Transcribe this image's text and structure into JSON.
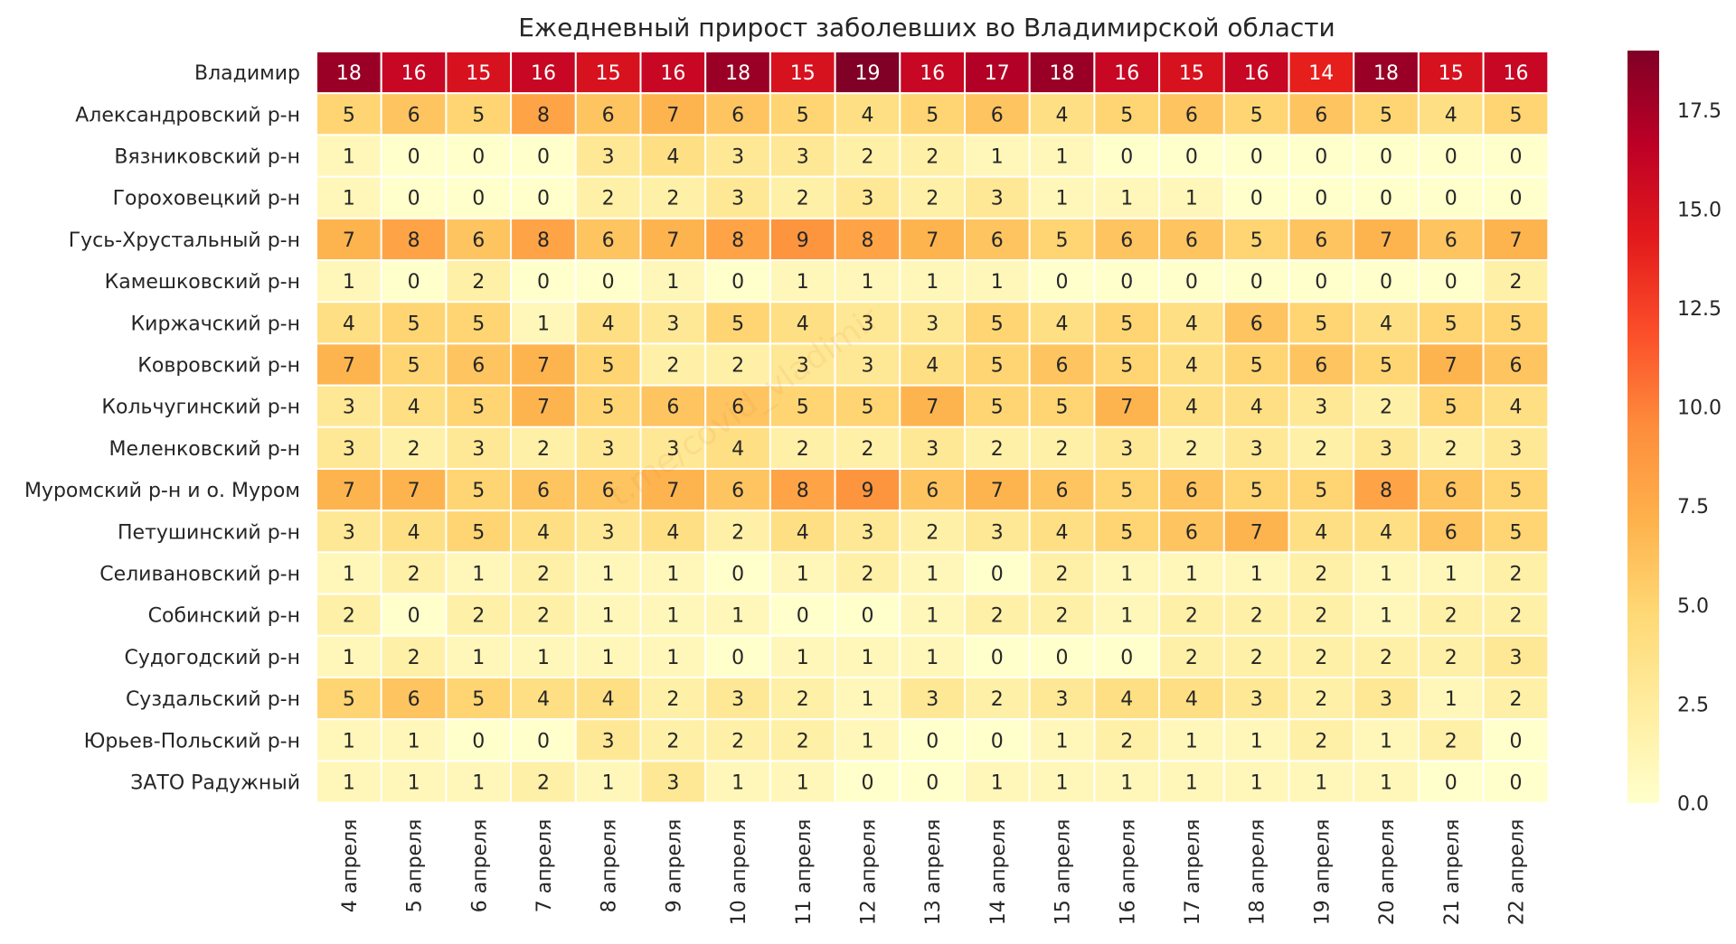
{
  "chart_data": {
    "type": "heatmap",
    "title": "Ежедневный прирост заболевших во Владимирской области",
    "x_categories": [
      "4 апреля",
      "5 апреля",
      "6 апреля",
      "7 апреля",
      "8 апреля",
      "9 апреля",
      "10 апреля",
      "11 апреля",
      "12 апреля",
      "13 апреля",
      "14 апреля",
      "15 апреля",
      "16 апреля",
      "17 апреля",
      "18 апреля",
      "19 апреля",
      "20 апреля",
      "21 апреля",
      "22 апреля"
    ],
    "y_categories": [
      "Владимир",
      "Александровский р-н",
      "Вязниковский р-н",
      "Гороховецкий р-н",
      "Гусь-Хрустальный р-н",
      "Камешковский р-н",
      "Киржачский р-н",
      "Ковровский р-н",
      "Кольчугинский р-н",
      "Меленковский р-н",
      "Муромский р-н и о. Муром",
      "Петушинский р-н",
      "Селивановский р-н",
      "Собинский р-н",
      "Судогодский р-н",
      "Суздальский р-н",
      "Юрьев-Польский р-н",
      "ЗАТО Радужный"
    ],
    "values": [
      [
        18,
        16,
        15,
        16,
        15,
        16,
        18,
        15,
        19,
        16,
        17,
        18,
        16,
        15,
        16,
        14,
        18,
        15,
        16
      ],
      [
        5,
        6,
        5,
        8,
        6,
        7,
        6,
        5,
        4,
        5,
        6,
        4,
        5,
        6,
        5,
        6,
        5,
        4,
        5
      ],
      [
        1,
        0,
        0,
        0,
        3,
        4,
        3,
        3,
        2,
        2,
        1,
        1,
        0,
        0,
        0,
        0,
        0,
        0,
        0
      ],
      [
        1,
        0,
        0,
        0,
        2,
        2,
        3,
        2,
        3,
        2,
        3,
        1,
        1,
        1,
        0,
        0,
        0,
        0,
        0
      ],
      [
        7,
        8,
        6,
        8,
        6,
        7,
        8,
        9,
        8,
        7,
        6,
        5,
        6,
        6,
        5,
        6,
        7,
        6,
        7
      ],
      [
        1,
        0,
        2,
        0,
        0,
        1,
        0,
        1,
        1,
        1,
        1,
        0,
        0,
        0,
        0,
        0,
        0,
        0,
        2
      ],
      [
        4,
        5,
        5,
        1,
        4,
        3,
        5,
        4,
        3,
        3,
        5,
        4,
        5,
        4,
        6,
        5,
        4,
        5,
        5
      ],
      [
        7,
        5,
        6,
        7,
        5,
        2,
        2,
        3,
        3,
        4,
        5,
        6,
        5,
        4,
        5,
        6,
        5,
        7,
        6
      ],
      [
        3,
        4,
        5,
        7,
        5,
        6,
        6,
        5,
        5,
        7,
        5,
        5,
        7,
        4,
        4,
        3,
        2,
        5,
        4
      ],
      [
        3,
        2,
        3,
        2,
        3,
        3,
        4,
        2,
        2,
        3,
        2,
        2,
        3,
        2,
        3,
        2,
        3,
        2,
        3
      ],
      [
        7,
        7,
        5,
        6,
        6,
        7,
        6,
        8,
        9,
        6,
        7,
        6,
        5,
        6,
        5,
        5,
        8,
        6,
        5
      ],
      [
        3,
        4,
        5,
        4,
        3,
        4,
        2,
        4,
        3,
        2,
        3,
        4,
        5,
        6,
        7,
        4,
        4,
        6,
        5
      ],
      [
        1,
        2,
        1,
        2,
        1,
        1,
        0,
        1,
        2,
        1,
        0,
        2,
        1,
        1,
        1,
        2,
        1,
        1,
        2
      ],
      [
        2,
        0,
        2,
        2,
        1,
        1,
        1,
        0,
        0,
        1,
        2,
        2,
        1,
        2,
        2,
        2,
        1,
        2,
        2
      ],
      [
        1,
        2,
        1,
        1,
        1,
        1,
        0,
        1,
        1,
        1,
        0,
        0,
        0,
        2,
        2,
        2,
        2,
        2,
        3
      ],
      [
        5,
        6,
        5,
        4,
        4,
        2,
        3,
        2,
        1,
        3,
        2,
        3,
        4,
        4,
        3,
        2,
        3,
        1,
        2
      ],
      [
        1,
        1,
        0,
        0,
        3,
        2,
        2,
        2,
        1,
        0,
        0,
        1,
        2,
        1,
        1,
        2,
        1,
        2,
        0
      ],
      [
        1,
        1,
        1,
        2,
        1,
        3,
        1,
        1,
        0,
        0,
        1,
        1,
        1,
        1,
        1,
        1,
        1,
        0,
        0
      ]
    ],
    "colormap": "YlOrRd",
    "vmin": 0,
    "vmax": 19,
    "colorbar_ticks": [
      "0.0",
      "2.5",
      "5.0",
      "7.5",
      "10.0",
      "12.5",
      "15.0",
      "17.5"
    ],
    "annotations": true,
    "watermark": "t.me/covid_vladimir"
  }
}
